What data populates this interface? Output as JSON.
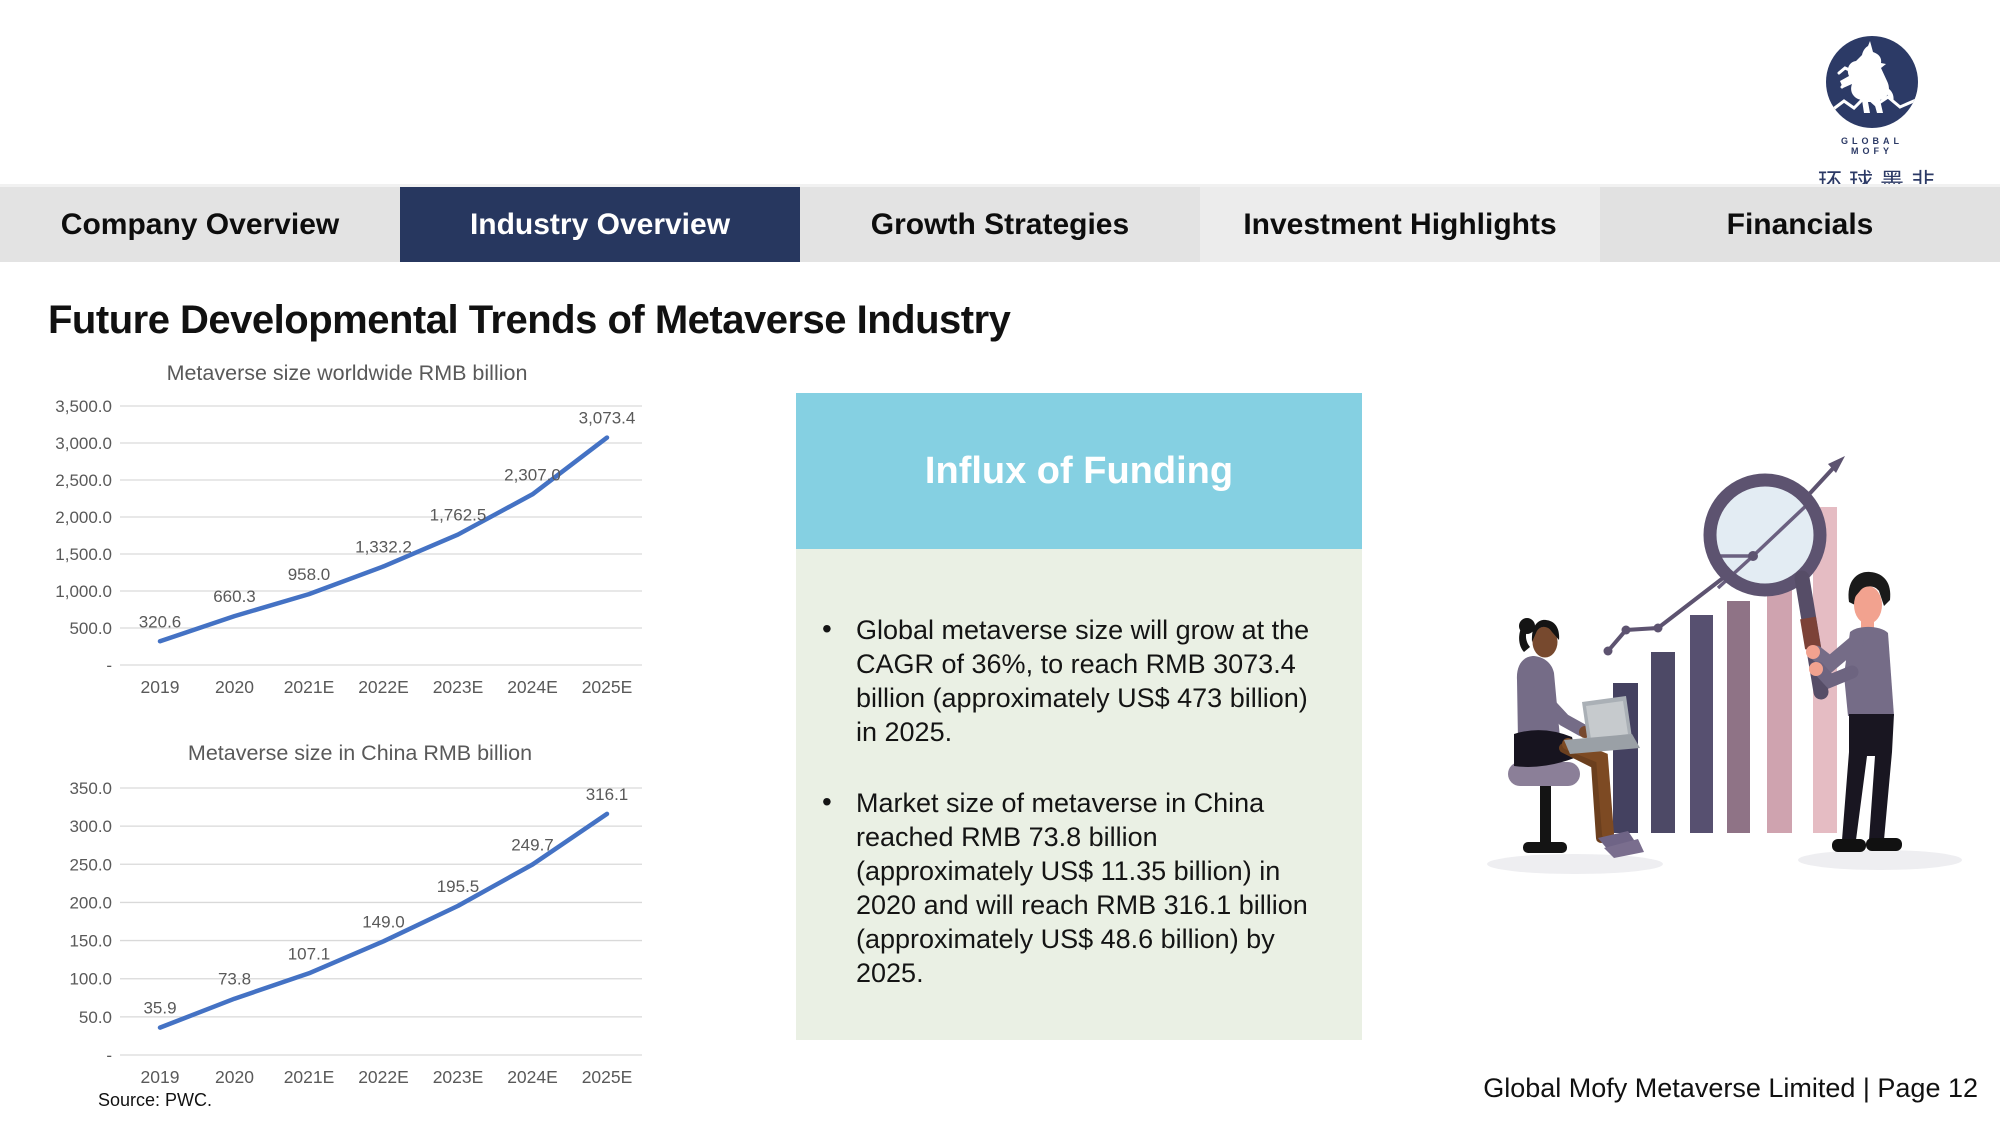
{
  "logo": {
    "line1": "GLOBAL",
    "line2": "MOFY",
    "chinese": "环球墨非"
  },
  "nav": {
    "tabs": [
      {
        "label": "Company Overview",
        "active": false,
        "bg": "#e3e3e3"
      },
      {
        "label": "Industry Overview",
        "active": true,
        "bg": "#27375f"
      },
      {
        "label": "Growth Strategies",
        "active": false,
        "bg": "#e3e3e3"
      },
      {
        "label": "Investment Highlights",
        "active": false,
        "bg": "#ececec"
      },
      {
        "label": "Financials",
        "active": false,
        "bg": "#e1e1e1"
      }
    ]
  },
  "page": {
    "title": "Future Developmental Trends of Metaverse Industry",
    "source_note": "Source: PWC.",
    "footer": "Global Mofy Metaverse Limited | Page 12"
  },
  "funding_panel": {
    "title": "Influx of Funding",
    "bullets": [
      "Global metaverse size will grow at the CAGR of 36%, to reach RMB 3073.4 billion (approximately US$ 473 billion) in 2025.",
      "Market size of metaverse in China reached RMB 73.8 billion (approximately US$ 11.35 billion) in 2020 and will reach RMB 316.1 billion (approximately US$ 48.6 billion) by 2025."
    ]
  },
  "chart_data": [
    {
      "type": "line",
      "title": "Metaverse size worldwide RMB billion",
      "categories": [
        "2019",
        "2020",
        "2021E",
        "2022E",
        "2023E",
        "2024E",
        "2025E"
      ],
      "values": [
        320.6,
        660.3,
        958.0,
        1332.2,
        1762.5,
        2307.0,
        3073.4
      ],
      "point_labels": [
        "320.6",
        "660.3",
        "958.0",
        "1,332.2",
        "1,762.5",
        "2,307.0",
        "3,073.4"
      ],
      "xlabel": "",
      "ylabel": "",
      "ylim": [
        0,
        3500
      ],
      "yticks": [
        "-",
        "500.0",
        "1,000.0",
        "1,500.0",
        "2,000.0",
        "2,500.0",
        "3,000.0",
        "3,500.0"
      ],
      "grid": true,
      "legend": "none",
      "line_color": "#4472c4"
    },
    {
      "type": "line",
      "title": "Metaverse size in China RMB billion",
      "categories": [
        "2019",
        "2020",
        "2021E",
        "2022E",
        "2023E",
        "2024E",
        "2025E"
      ],
      "values": [
        35.9,
        73.8,
        107.1,
        149.0,
        195.5,
        249.7,
        316.1
      ],
      "point_labels": [
        "35.9",
        "73.8",
        "107.1",
        "149.0",
        "195.5",
        "249.7",
        "316.1"
      ],
      "xlabel": "",
      "ylabel": "",
      "ylim": [
        0,
        350
      ],
      "yticks": [
        "-",
        "50.0",
        "100.0",
        "150.0",
        "200.0",
        "250.0",
        "300.0",
        "350.0"
      ],
      "grid": true,
      "legend": "none",
      "line_color": "#4472c4"
    }
  ],
  "colors": {
    "navy": "#27375f",
    "navy_logo": "#2c3a66",
    "teal": "#85d0e2",
    "panel_green": "#eaf0e4",
    "chart_line": "#4472c4",
    "chart_text": "#595959",
    "gridline": "#d9d9d9"
  },
  "icons": {
    "logo_unicorn": "unicorn-in-circle",
    "illustration": "analysts-with-bar-chart-and-magnifier"
  }
}
